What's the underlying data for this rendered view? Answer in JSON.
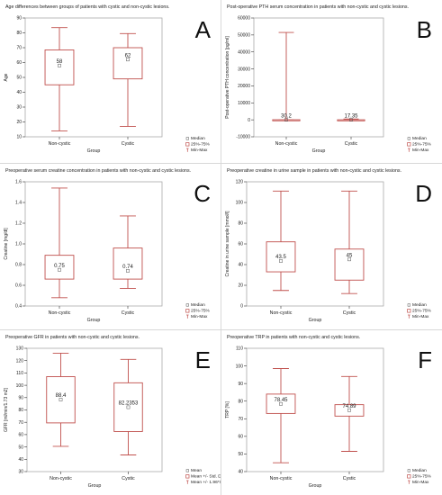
{
  "chart_data": [
    {
      "letter": "A",
      "type": "box",
      "title": "Age differences between groups of patients with cystic and non-cystic lesions.",
      "xlabel": "Group",
      "ylabel": "Age",
      "categories": [
        "Non-cystic",
        "Cystic"
      ],
      "ylim": [
        10,
        90
      ],
      "yticks": [
        10,
        20,
        30,
        40,
        50,
        60,
        70,
        80,
        90
      ],
      "boxes": [
        {
          "min": 14,
          "q1": 45,
          "center": 58,
          "q3": 68.5,
          "max": 83.5,
          "label": "58"
        },
        {
          "min": 17,
          "q1": 49,
          "center": 62,
          "q3": 70,
          "max": 79.5,
          "label": "62"
        }
      ],
      "legend": [
        "Median",
        "25%-75%",
        "Min-Max"
      ]
    },
    {
      "letter": "B",
      "type": "box",
      "title": "Post-operative PTH serum  concentration in patients with non-cystic and cystic lesions.",
      "xlabel": "Group",
      "ylabel": "Post-operative PTH concentration [pg/ml]",
      "categories": [
        "Non-cystic",
        "Cystic"
      ],
      "ylim": [
        -10000,
        60000
      ],
      "yticks": [
        -10000,
        0,
        10000,
        20000,
        30000,
        40000,
        50000,
        60000
      ],
      "boxes": [
        {
          "min": 0,
          "q1": 0,
          "center": 30.2,
          "q3": 60,
          "max": 51500,
          "label": "30.2"
        },
        {
          "min": 0,
          "q1": 0,
          "center": 17.35,
          "q3": 40,
          "max": 500,
          "label": "17.35"
        }
      ],
      "legend": [
        "Median",
        "25%-75%",
        "Min-Max"
      ]
    },
    {
      "letter": "C",
      "type": "box",
      "title": "Preoperative serum creatine concentration in patients with non-cystic and cystic lesions.",
      "xlabel": "Group",
      "ylabel": "Creatine [mg/dl]",
      "categories": [
        "Non-cystic",
        "Cystic"
      ],
      "ylim": [
        0.4,
        1.6
      ],
      "yticks": [
        "0.4",
        "0.6",
        "0.8",
        "1.0",
        "1.2",
        "1.4",
        "1.6"
      ],
      "boxes": [
        {
          "min": 0.48,
          "q1": 0.66,
          "center": 0.75,
          "q3": 0.89,
          "max": 1.54,
          "label": "0.75"
        },
        {
          "min": 0.57,
          "q1": 0.66,
          "center": 0.74,
          "q3": 0.96,
          "max": 1.27,
          "label": "0.74"
        }
      ],
      "legend": [
        "Median",
        "25%-75%",
        "Min-Max"
      ]
    },
    {
      "letter": "D",
      "type": "box",
      "title": "Preoperative creatine in urine sample in patients with non-cystic and cystic lesions.",
      "xlabel": "Group",
      "ylabel": "Creatine in urine sample [mmol/l]",
      "categories": [
        "Non-cystic",
        "Cystic"
      ],
      "ylim": [
        0,
        120
      ],
      "yticks": [
        0,
        20,
        40,
        60,
        80,
        100,
        120
      ],
      "boxes": [
        {
          "min": 15,
          "q1": 33,
          "center": 43.5,
          "q3": 62,
          "max": 111,
          "label": "43.5"
        },
        {
          "min": 12,
          "q1": 25,
          "center": 45,
          "q3": 55,
          "max": 111,
          "label": "45"
        }
      ],
      "legend": [
        "Median",
        "25%-75%",
        "Min-Max"
      ]
    },
    {
      "letter": "E",
      "type": "box",
      "title": "Preoperative GFR in patients with non-cystic and cystic lesions.",
      "xlabel": "Group",
      "ylabel": "GFR [ml/min/1.73 m2]",
      "categories": [
        "Non-cystic",
        "Cystic"
      ],
      "ylim": [
        30,
        130
      ],
      "yticks": [
        30,
        40,
        50,
        60,
        70,
        80,
        90,
        100,
        110,
        120,
        130
      ],
      "boxes": [
        {
          "min": 50.5,
          "q1": 69.5,
          "center": 88.4,
          "q3": 107,
          "max": 126,
          "label": "88.4"
        },
        {
          "min": 43.5,
          "q1": 62.5,
          "center": 82.2,
          "q3": 102,
          "max": 121,
          "label": "82.2353"
        }
      ],
      "legend": [
        "Mean",
        "Mean +/- Std. Dev.",
        "Mean +/- 1.96*Std. Dev."
      ]
    },
    {
      "letter": "F",
      "type": "box",
      "title": "Preoperative TRP in patients with non-cystic and cystic lesions.",
      "xlabel": "Group",
      "ylabel": "TRP [%]",
      "categories": [
        "Non-cystic",
        "Cystic"
      ],
      "ylim": [
        40,
        110
      ],
      "yticks": [
        40,
        50,
        60,
        70,
        80,
        90,
        100,
        110
      ],
      "boxes": [
        {
          "min": 45,
          "q1": 73,
          "center": 78.45,
          "q3": 84,
          "max": 98.5,
          "label": "78.45"
        },
        {
          "min": 51.5,
          "q1": 71.5,
          "center": 74.89,
          "q3": 78,
          "max": 94,
          "label": "74.89"
        }
      ],
      "legend": [
        "Median",
        "25%-75%",
        "Min-Max"
      ]
    }
  ],
  "colors": {
    "box": "#c0504d",
    "axis": "#333333",
    "text": "#222222",
    "frame": "#aaaaaa"
  }
}
